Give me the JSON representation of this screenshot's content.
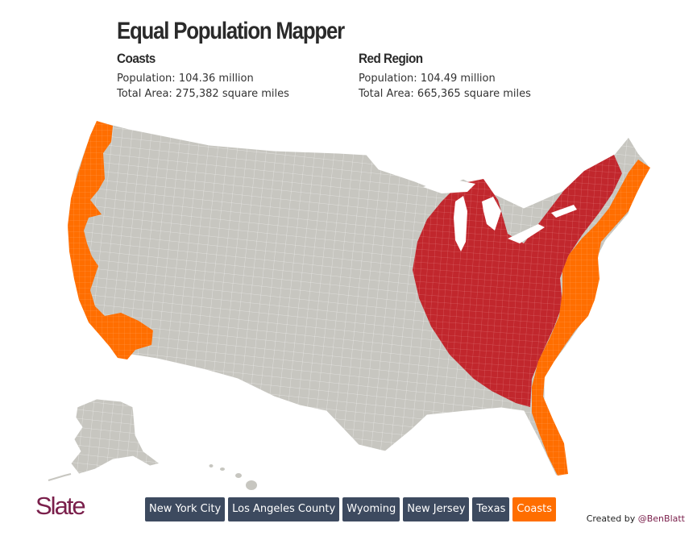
{
  "title": "Equal Population Mapper",
  "regions": {
    "coasts": {
      "name": "Coasts",
      "population": "Population: 104.36 million",
      "area": "Total Area: 275,382 square miles",
      "color": "#ff6e00"
    },
    "red": {
      "name": "Red Region",
      "population": "Population: 104.49 million",
      "area": "Total Area: 665,365 square miles",
      "color": "#c1272d"
    }
  },
  "map": {
    "base_color": "#c7c6c0",
    "border_color": "#ffffff"
  },
  "logo": "Slate",
  "buttons": [
    {
      "label": "New York City",
      "active": false
    },
    {
      "label": "Los Angeles County",
      "active": false
    },
    {
      "label": "Wyoming",
      "active": false
    },
    {
      "label": "New Jersey",
      "active": false
    },
    {
      "label": "Texas",
      "active": false
    },
    {
      "label": "Coasts",
      "active": true
    }
  ],
  "credit": {
    "prefix": "Created by ",
    "handle": "@BenBlatt"
  },
  "colors": {
    "button_bg": "#3d4a5f",
    "button_active_bg": "#ff6e00",
    "brand": "#7a1f4b"
  }
}
